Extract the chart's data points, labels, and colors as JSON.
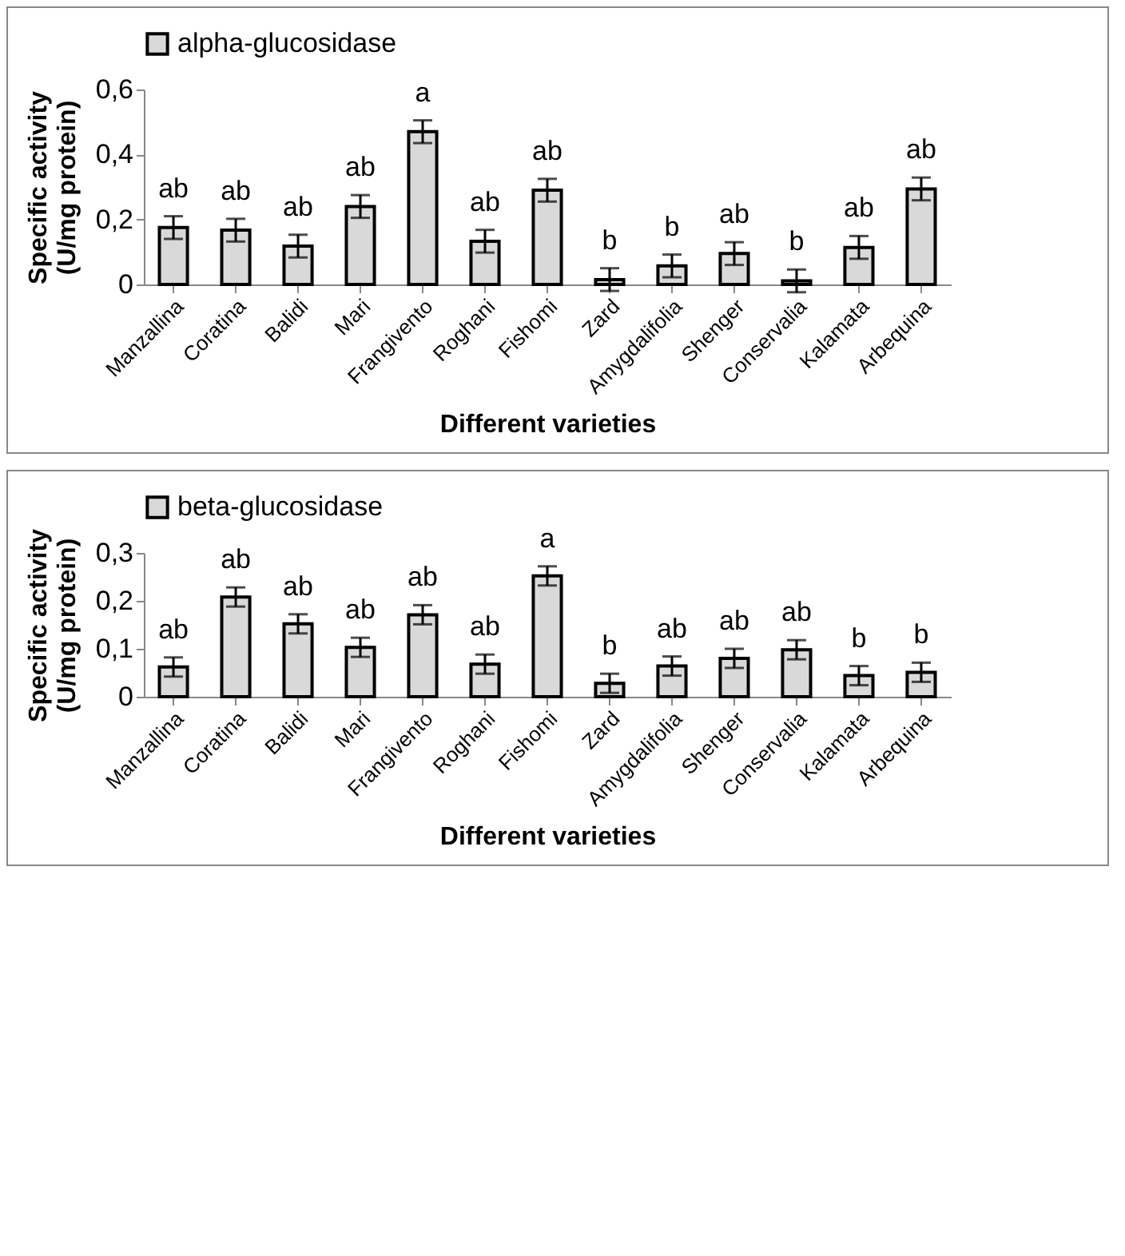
{
  "chart_data": [
    {
      "type": "bar",
      "xlabel": "Different varieties",
      "ylabel": "Specific activity (U/mg protein)",
      "legend": "top",
      "grid": false,
      "categories": [
        "Manzallina",
        "Coratina",
        "Balidi",
        "Mari",
        "Frangivento",
        "Roghani",
        "Fishomi",
        "Zard",
        "Amygdalifolia",
        "Shenger",
        "Conservalia",
        "Kalamata",
        "Arbequina"
      ],
      "series": [
        {
          "name": "alpha-glucosidase",
          "color": "#d9d9d9",
          "values": [
            0.175,
            0.167,
            0.118,
            0.24,
            0.47,
            0.133,
            0.29,
            0.015,
            0.057,
            0.095,
            0.011,
            0.114,
            0.294
          ],
          "errors": [
            0.035,
            0.035,
            0.035,
            0.035,
            0.035,
            0.035,
            0.035,
            0.035,
            0.035,
            0.035,
            0.035,
            0.035,
            0.035
          ],
          "value_labels": [
            "ab",
            "ab",
            "ab",
            "ab",
            "a",
            "ab",
            "ab",
            "b",
            "b",
            "ab",
            "b",
            "ab",
            "ab"
          ]
        }
      ],
      "ylim": [
        0,
        0.6
      ],
      "yticks": [
        {
          "value": 0,
          "label": "0"
        },
        {
          "value": 0.2,
          "label": "0,2"
        },
        {
          "value": 0.4,
          "label": "0,4"
        },
        {
          "value": 0.6,
          "label": "0,6"
        }
      ]
    },
    {
      "type": "bar",
      "xlabel": "Different varieties",
      "ylabel": "Specific activity (U/mg protein)",
      "legend": "top",
      "grid": false,
      "categories": [
        "Manzallina",
        "Coratina",
        "Balidi",
        "Mari",
        "Frangivento",
        "Roghani",
        "Fishomi",
        "Zard",
        "Amygdalifolia",
        "Shenger",
        "Conservalia",
        "Kalamata",
        "Arbequina"
      ],
      "series": [
        {
          "name": "beta-glucosidase",
          "color": "#d9d9d9",
          "values": [
            0.062,
            0.208,
            0.152,
            0.103,
            0.171,
            0.068,
            0.252,
            0.028,
            0.064,
            0.08,
            0.098,
            0.044,
            0.051
          ],
          "errors": [
            0.02,
            0.02,
            0.02,
            0.02,
            0.02,
            0.02,
            0.02,
            0.02,
            0.02,
            0.02,
            0.02,
            0.02,
            0.02
          ],
          "value_labels": [
            "ab",
            "ab",
            "ab",
            "ab",
            "ab",
            "ab",
            "a",
            "b",
            "ab",
            "ab",
            "ab",
            "b",
            "b"
          ]
        }
      ],
      "ylim": [
        0,
        0.3
      ],
      "yticks": [
        {
          "value": 0,
          "label": "0"
        },
        {
          "value": 0.1,
          "label": "0,1"
        },
        {
          "value": 0.2,
          "label": "0,2"
        },
        {
          "value": 0.3,
          "label": "0,3"
        }
      ]
    }
  ]
}
